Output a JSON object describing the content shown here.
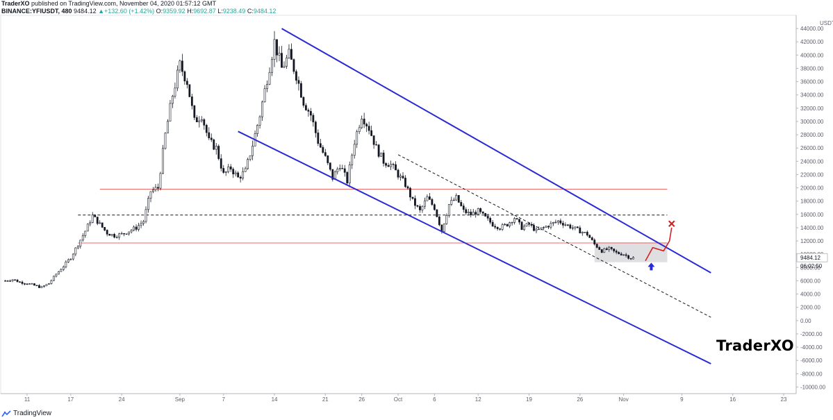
{
  "header": {
    "author": "TraderXO",
    "published_text": "published on TradingView.com, November 04, 2020 01:57:12 GMT",
    "symbol": "BINANCE:YFIUSDT, 480",
    "last_price": "9484.12",
    "change": "+132.60 (+1.42%)",
    "open_label": "O:",
    "open": "9359.92",
    "high_label": "H:",
    "high": "9692.87",
    "low_label": "L:",
    "low": "9238.49",
    "close_label": "C:",
    "close": "9484.12"
  },
  "footer": {
    "brand": "TradingView"
  },
  "watermark": "TraderXO",
  "price_axis": {
    "currency": "USDT",
    "last_price_label": "9484.12",
    "countdown_label": "06:02:50"
  },
  "chart_data": {
    "type": "candlestick",
    "symbol": "BINANCE:YFIUSDT",
    "timeframe": "480",
    "ylim": [
      -11000,
      46000
    ],
    "y_ticks": [
      44000,
      42000,
      40000,
      38000,
      36000,
      34000,
      32000,
      30000,
      28000,
      26000,
      24000,
      22000,
      20000,
      18000,
      16000,
      14000,
      12000,
      10000,
      8000,
      6000,
      4000,
      2000,
      0,
      -2000,
      -4000,
      -6000,
      -8000,
      -10000
    ],
    "y_tick_labels": [
      "44000.00",
      "42000.00",
      "40000.00",
      "38000.00",
      "36000.00",
      "34000.00",
      "32000.00",
      "30000.00",
      "28000.00",
      "26000.00",
      "24000.00",
      "22000.00",
      "20000.00",
      "18000.00",
      "16000.00",
      "14000.00",
      "12000.00",
      "10000.00",
      "8000.00",
      "6000.00",
      "4000.00",
      "2000.00",
      "0.00",
      "-2000.00",
      "-4000.00",
      "-6000.00",
      "-8000.00",
      "-10000.00"
    ],
    "x_ticks": [
      {
        "label": "11",
        "day": 11
      },
      {
        "label": "17",
        "day": 17
      },
      {
        "label": "24",
        "day": 24
      },
      {
        "label": "Sep",
        "day": 32
      },
      {
        "label": "7",
        "day": 38
      },
      {
        "label": "14",
        "day": 45
      },
      {
        "label": "21",
        "day": 52
      },
      {
        "label": "26",
        "day": 57
      },
      {
        "label": "Oct",
        "day": 62
      },
      {
        "label": "6",
        "day": 67
      },
      {
        "label": "12",
        "day": 73
      },
      {
        "label": "19",
        "day": 80
      },
      {
        "label": "26",
        "day": 87
      },
      {
        "label": "Nov",
        "day": 93
      },
      {
        "label": "9",
        "day": 101
      },
      {
        "label": "16",
        "day": 108
      },
      {
        "label": "23",
        "day": 115
      }
    ],
    "close_path": [
      [
        8,
        6000
      ],
      [
        9,
        6200
      ],
      [
        10,
        5800
      ],
      [
        11,
        5600
      ],
      [
        12,
        5300
      ],
      [
        13,
        5000
      ],
      [
        14,
        5600
      ],
      [
        15,
        7000
      ],
      [
        16,
        8200
      ],
      [
        17,
        9500
      ],
      [
        18,
        11500
      ],
      [
        19,
        13500
      ],
      [
        20,
        15800
      ],
      [
        21,
        14500
      ],
      [
        22,
        13200
      ],
      [
        23,
        12800
      ],
      [
        24,
        13000
      ],
      [
        25,
        13500
      ],
      [
        26,
        14000
      ],
      [
        27,
        15000
      ],
      [
        28,
        19500
      ],
      [
        29,
        20000
      ],
      [
        30,
        28000
      ],
      [
        31,
        34000
      ],
      [
        32,
        38500
      ],
      [
        33,
        36000
      ],
      [
        34,
        30000
      ],
      [
        35,
        31000
      ],
      [
        36,
        27000
      ],
      [
        37,
        26000
      ],
      [
        38,
        22000
      ],
      [
        39,
        23000
      ],
      [
        40,
        21500
      ],
      [
        41,
        22500
      ],
      [
        42,
        26500
      ],
      [
        43,
        31000
      ],
      [
        44,
        36500
      ],
      [
        45,
        42000
      ],
      [
        46,
        38000
      ],
      [
        47,
        40000
      ],
      [
        48,
        37000
      ],
      [
        49,
        33000
      ],
      [
        50,
        31000
      ],
      [
        51,
        27000
      ],
      [
        52,
        24500
      ],
      [
        53,
        21500
      ],
      [
        54,
        23500
      ],
      [
        55,
        21000
      ],
      [
        56,
        27000
      ],
      [
        57,
        31000
      ],
      [
        58,
        29000
      ],
      [
        59,
        26000
      ],
      [
        60,
        24000
      ],
      [
        61,
        23500
      ],
      [
        62,
        22000
      ],
      [
        63,
        20500
      ],
      [
        64,
        18000
      ],
      [
        65,
        16500
      ],
      [
        66,
        18500
      ],
      [
        67,
        17000
      ],
      [
        68,
        13500
      ],
      [
        69,
        17500
      ],
      [
        70,
        18500
      ],
      [
        71,
        16500
      ],
      [
        72,
        16000
      ],
      [
        73,
        16500
      ],
      [
        74,
        15500
      ],
      [
        75,
        14500
      ],
      [
        76,
        14000
      ],
      [
        77,
        14500
      ],
      [
        78,
        15500
      ],
      [
        79,
        14000
      ],
      [
        80,
        14500
      ],
      [
        81,
        13500
      ],
      [
        82,
        14000
      ],
      [
        83,
        14500
      ],
      [
        84,
        15000
      ],
      [
        85,
        14500
      ],
      [
        86,
        14000
      ],
      [
        87,
        13500
      ],
      [
        88,
        13000
      ],
      [
        89,
        11500
      ],
      [
        90,
        10500
      ],
      [
        91,
        10800
      ],
      [
        92,
        10200
      ],
      [
        93,
        10000
      ],
      [
        94,
        9400
      ],
      [
        94.4,
        9484
      ]
    ],
    "annotations": {
      "horizontal_lines": [
        {
          "style": "solid",
          "color": "#f06a6a",
          "value": 19800,
          "from_day": 21
        },
        {
          "style": "dashed",
          "color": "#131722",
          "value": 15900,
          "from_day": 18
        },
        {
          "style": "solid",
          "color": "#f06a6a",
          "value": 11700,
          "from_day": 18
        }
      ],
      "channel_upper": {
        "color": "#2a2ad4",
        "points": [
          [
            46,
            44000
          ],
          [
            105,
            7200
          ]
        ]
      },
      "channel_lower": {
        "color": "#2a2ad4",
        "points": [
          [
            40,
            28500
          ],
          [
            105,
            -6500
          ]
        ]
      },
      "dashed_trendline": {
        "color": "#131722",
        "points": [
          [
            62,
            25000
          ],
          [
            105,
            500
          ]
        ]
      },
      "zone": {
        "color": "#d9d9dc",
        "days": [
          89,
          99
        ],
        "values": [
          8800,
          11800
        ]
      },
      "projection": {
        "color": "#d42020",
        "points": [
          [
            96,
            9000
          ],
          [
            97,
            11000
          ],
          [
            98.5,
            10500
          ],
          [
            99.3,
            12000
          ],
          [
            99.6,
            14000
          ]
        ]
      },
      "target_marker": {
        "color": "#d42020",
        "day": 99.6,
        "value": 14600
      },
      "up_arrow": {
        "color": "#2a2ad4",
        "day": 96.8,
        "value": 8000
      }
    }
  }
}
